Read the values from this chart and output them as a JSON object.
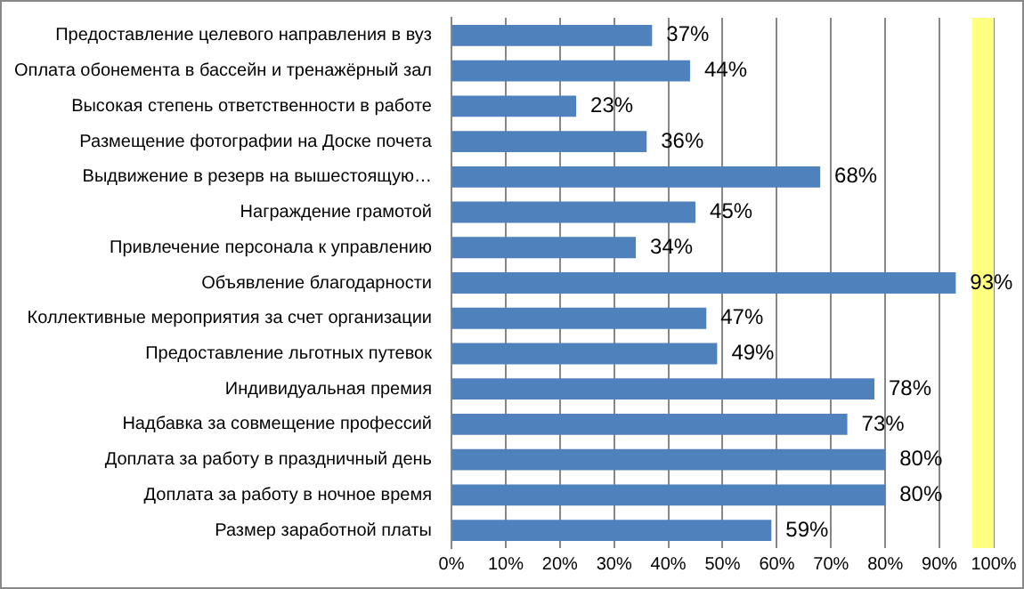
{
  "chart_data": {
    "type": "bar",
    "orientation": "horizontal",
    "categories": [
      "Предоставление целевого направления в вуз",
      "Оплата обонемента в бассейн и тренажёрный зал",
      "Высокая степень ответственности в работе",
      "Размещение фотографии на Доске почета",
      "Выдвижение в резерв на вышестоящую…",
      "Награждение грамотой",
      "Привлечение персонала к управлению",
      "Объявление благодарности",
      "Коллективные мероприятия за счет организации",
      "Предоставление льготных путевок",
      "Индивидуальная премия",
      "Надбавка за совмещение профессий",
      "Доплата за работу в праздничный день",
      "Доплата за работу в ночное время",
      "Размер заработной платы"
    ],
    "values": [
      37,
      44,
      23,
      36,
      68,
      45,
      34,
      93,
      47,
      49,
      78,
      73,
      80,
      80,
      59
    ],
    "color": "#4f81bd",
    "value_labels": [
      "37%",
      "44%",
      "23%",
      "36%",
      "68%",
      "45%",
      "34%",
      "93%",
      "47%",
      "49%",
      "78%",
      "73%",
      "80%",
      "80%",
      "59%"
    ],
    "xlim": [
      0,
      100
    ],
    "xticks": [
      {
        "value": 0,
        "label": "0%"
      },
      {
        "value": 10,
        "label": "10%"
      },
      {
        "value": 20,
        "label": "20%"
      },
      {
        "value": 30,
        "label": "30%"
      },
      {
        "value": 40,
        "label": "40%"
      },
      {
        "value": 50,
        "label": "50%"
      },
      {
        "value": 60,
        "label": "60%"
      },
      {
        "value": 70,
        "label": "70%"
      },
      {
        "value": 80,
        "label": "80%"
      },
      {
        "value": 90,
        "label": "90%"
      },
      {
        "value": 100,
        "label": "100%"
      }
    ],
    "grid": "x",
    "bands": [
      {
        "axis": "x",
        "from": 96,
        "to": 100,
        "color": "#ffff80"
      }
    ]
  }
}
